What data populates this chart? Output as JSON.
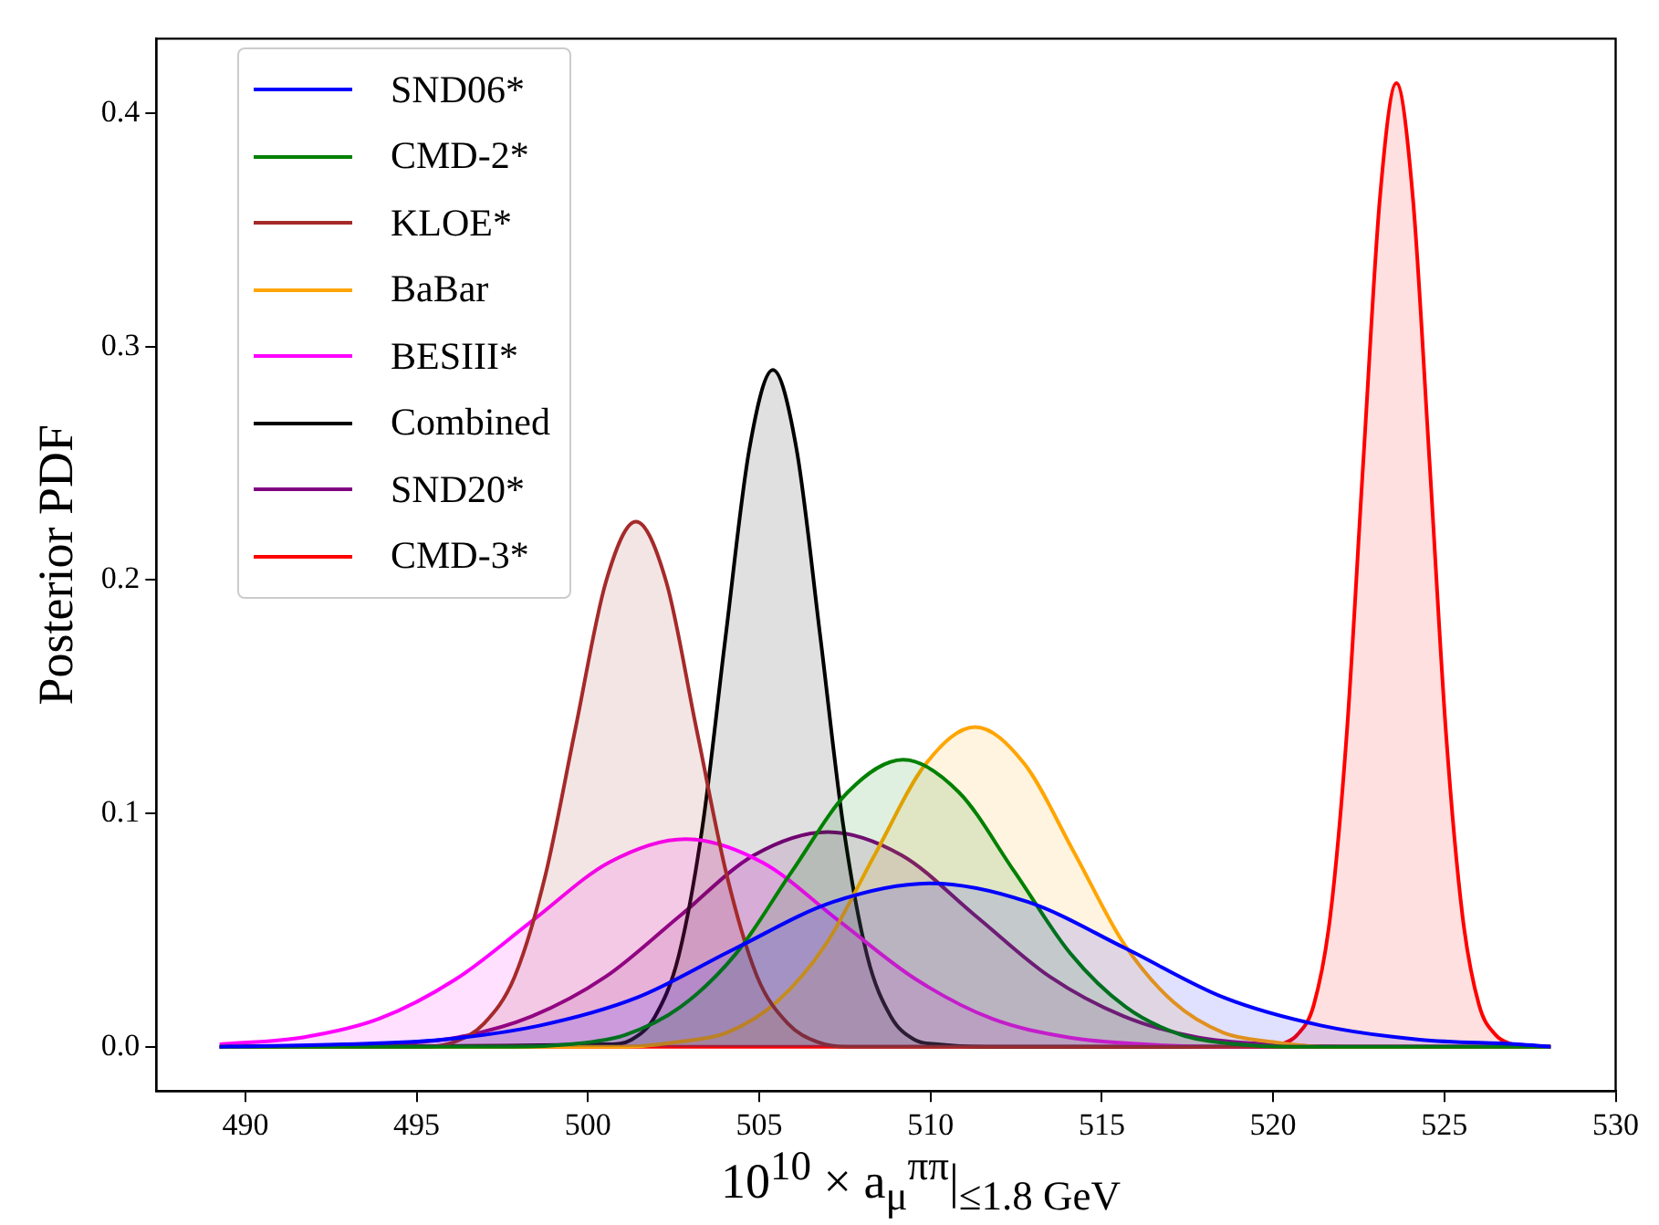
{
  "chart_data": {
    "type": "area",
    "xlabel": "10$^{10}$ × a$_{μ}$$^{ππ}$|$_{≤1.8 GeV}$",
    "ylabel": "Posterior PDF",
    "xlim": [
      487.4,
      530
    ],
    "xticks": [
      490,
      495,
      500,
      505,
      510,
      515,
      520,
      525,
      530
    ],
    "ylim": [
      -0.019,
      0.432
    ],
    "yticks": [
      {
        "value": 0,
        "label": "0.0"
      },
      0.1,
      0.2,
      0.3,
      0.4
    ],
    "grid": false,
    "legend": "top left",
    "series": [
      {
        "name": "SND06*",
        "color": "#0000ff",
        "x": [
          489.25,
          492.87,
          495.72,
          498.58,
          501.43,
          504.29,
          507.15,
          510,
          512.85,
          515.71,
          518.57,
          521.42,
          524.28,
          527.13,
          528.1
        ],
        "values": [
          0,
          0.001,
          0.003,
          0.009,
          0.021,
          0.042,
          0.062,
          0.07,
          0.062,
          0.042,
          0.021,
          0.009,
          0.003,
          0.001,
          0
        ]
      },
      {
        "name": "CMD-2*",
        "color": "#008000",
        "x": [
          489.25,
          497.83,
          499.45,
          501.08,
          502.7,
          504.33,
          505.95,
          507.58,
          509.2,
          510.83,
          512.45,
          514.08,
          515.7,
          517.33,
          518.95,
          520.58,
          528.1
        ],
        "values": [
          0,
          0,
          0.001,
          0.005,
          0.017,
          0.04,
          0.075,
          0.109,
          0.123,
          0.109,
          0.075,
          0.04,
          0.017,
          0.005,
          0.001,
          0,
          0
        ]
      },
      {
        "name": "KLOE*",
        "color": "#a52a2a",
        "x": [
          489.25,
          495.2,
          496.09,
          496.97,
          497.86,
          498.75,
          499.63,
          500.52,
          501.4,
          502.29,
          503.17,
          504.06,
          504.94,
          505.83,
          506.71,
          507.6,
          528.1
        ],
        "values": [
          0,
          0,
          0.002,
          0.01,
          0.03,
          0.073,
          0.136,
          0.199,
          0.225,
          0.199,
          0.136,
          0.073,
          0.03,
          0.01,
          0.002,
          0,
          0
        ]
      },
      {
        "name": "BaBar",
        "color": "#ffa500",
        "x": [
          489.25,
          501.15,
          502.6,
          504.05,
          505.5,
          506.95,
          508.4,
          509.85,
          511.3,
          512.75,
          514.2,
          515.65,
          517.1,
          518.55,
          520,
          521.45,
          528.1
        ],
        "values": [
          0,
          0,
          0.002,
          0.006,
          0.019,
          0.044,
          0.083,
          0.121,
          0.137,
          0.121,
          0.083,
          0.044,
          0.019,
          0.006,
          0.002,
          0,
          0
        ]
      },
      {
        "name": "BESIII*",
        "color": "#ff00ff",
        "x": [
          489.25,
          491.68,
          493.91,
          496.15,
          498.38,
          500.62,
          502.85,
          505.09,
          507.32,
          509.56,
          511.79,
          514.03,
          516.26,
          518.5,
          528.1
        ],
        "values": [
          0.001,
          0.004,
          0.012,
          0.029,
          0.054,
          0.079,
          0.089,
          0.079,
          0.054,
          0.029,
          0.012,
          0.004,
          0.001,
          0,
          0
        ]
      },
      {
        "name": "Combined",
        "color": "#000000",
        "x": [
          489.25,
          500.58,
          501.27,
          501.96,
          502.65,
          503.34,
          504.02,
          504.71,
          505.4,
          506.09,
          506.78,
          507.46,
          508.15,
          508.84,
          509.53,
          510.22,
          511.6,
          528.1
        ],
        "values": [
          0,
          0.001,
          0.003,
          0.013,
          0.039,
          0.094,
          0.176,
          0.256,
          0.29,
          0.256,
          0.176,
          0.094,
          0.039,
          0.013,
          0.003,
          0.001,
          0,
          0
        ]
      },
      {
        "name": "SND20*",
        "color": "#800080",
        "x": [
          489.25,
          491.88,
          494.04,
          496.2,
          498.36,
          500.52,
          502.68,
          504.84,
          507,
          509.16,
          511.32,
          513.48,
          515.64,
          517.8,
          519.96,
          522.12,
          528.1
        ],
        "values": [
          0,
          0,
          0.001,
          0.004,
          0.013,
          0.03,
          0.056,
          0.082,
          0.092,
          0.082,
          0.056,
          0.03,
          0.013,
          0.004,
          0.001,
          0,
          0
        ]
      },
      {
        "name": "CMD-3*",
        "color": "#ff0000",
        "x": [
          489.25,
          519.74,
          520.22,
          520.7,
          521.19,
          521.67,
          522.15,
          522.63,
          523.12,
          523.6,
          524.08,
          524.57,
          525.05,
          525.53,
          526.01,
          526.5,
          526.98,
          527.46,
          528.1
        ],
        "values": [
          0,
          0,
          0.001,
          0.005,
          0.018,
          0.056,
          0.134,
          0.25,
          0.364,
          0.413,
          0.364,
          0.25,
          0.134,
          0.056,
          0.018,
          0.005,
          0.001,
          0,
          0
        ]
      }
    ]
  }
}
